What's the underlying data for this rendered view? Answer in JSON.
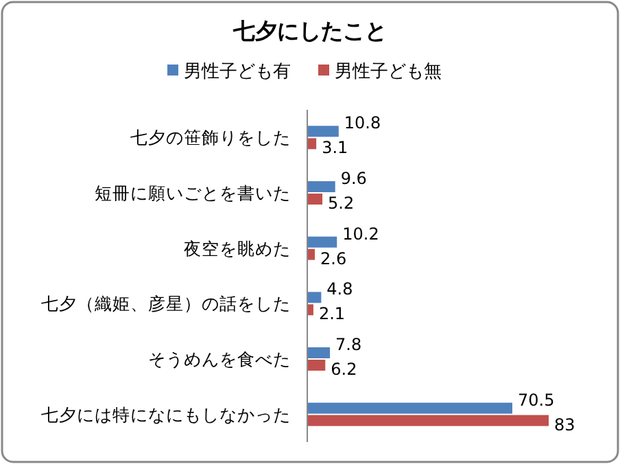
{
  "chart_data": {
    "type": "bar",
    "orientation": "horizontal",
    "title": "七夕にしたこと",
    "categories": [
      "七夕の笹飾りをした",
      "短冊に願いごとを書いた",
      "夜空を眺めた",
      "七夕（織姫、彦星）の話をした",
      "そうめんを食べた",
      "七夕には特になにもしなかった"
    ],
    "series": [
      {
        "name": "男性子ども有",
        "color": "#4f81bd",
        "values": [
          10.8,
          9.6,
          10.2,
          4.8,
          7.8,
          70.5
        ]
      },
      {
        "name": "男性子ども無",
        "color": "#c0504d",
        "values": [
          3.1,
          5.2,
          2.6,
          2.1,
          6.2,
          83
        ]
      }
    ],
    "data_labels": true,
    "legend": "top"
  }
}
